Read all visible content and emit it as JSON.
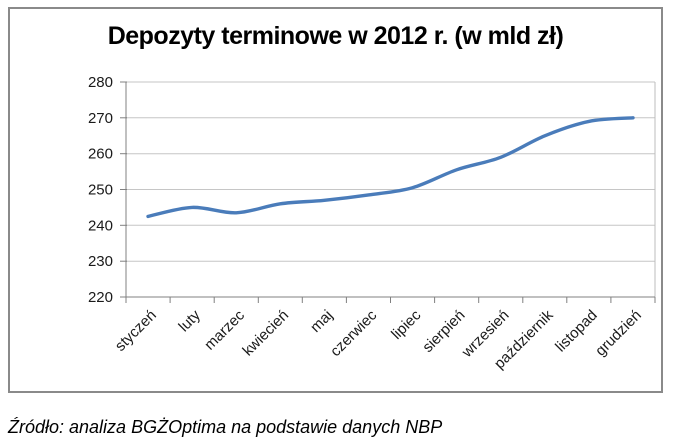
{
  "chart_data": {
    "type": "line",
    "title": "Depozyty terminowe w 2012 r. (w mld zł)",
    "categories": [
      "styczeń",
      "luty",
      "marzec",
      "kwiecień",
      "maj",
      "czerwiec",
      "lipiec",
      "sierpień",
      "wrzesień",
      "październik",
      "listopad",
      "grudzień"
    ],
    "values": [
      242.5,
      245,
      243.5,
      246,
      247,
      248.5,
      250.5,
      255.5,
      259,
      265,
      269,
      270
    ],
    "ylim": [
      220,
      280
    ],
    "yticks": [
      220,
      230,
      240,
      250,
      260,
      270,
      280
    ],
    "grid": "horizontal",
    "legend": "none",
    "smoothed": true,
    "line_color": "#4a7cba"
  },
  "caption": "Źródło: analiza BGŻOptima na podstawie danych NBP",
  "colors": {
    "gridline": "#c6c6c6",
    "axis": "#808080",
    "plot_border": "#bdbdbd",
    "chart_border": "#8a8a8a",
    "text": "#1a1a1a"
  }
}
